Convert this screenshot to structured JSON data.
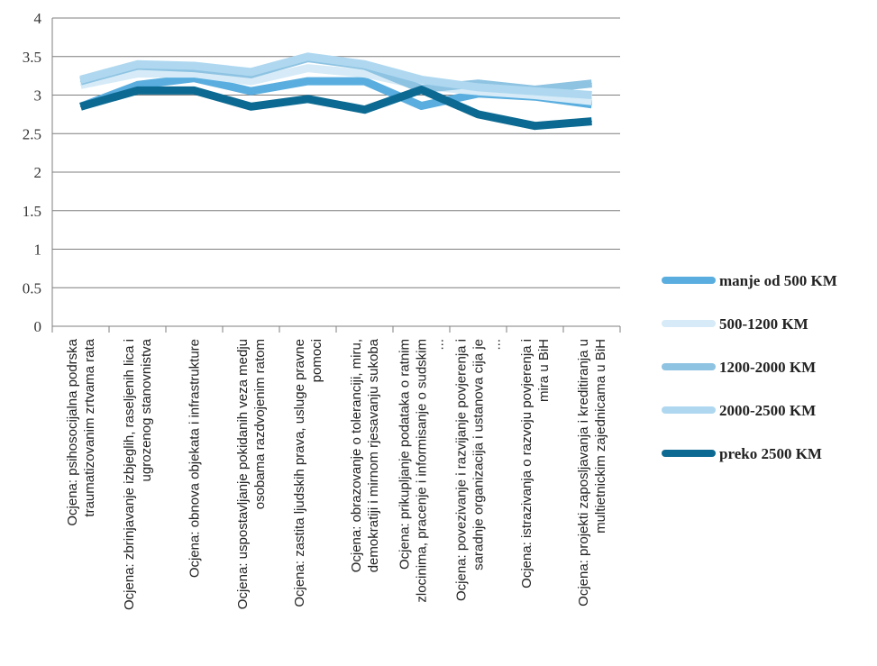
{
  "chart_data": {
    "type": "line",
    "ylim": [
      0,
      4
    ],
    "yticks": [
      "0",
      "0.5",
      "1",
      "1.5",
      "2",
      "2.5",
      "3",
      "3.5",
      "4"
    ],
    "grid": true,
    "legend_position": "right",
    "categories": [
      [
        "Ocjena: psihosocijalna podrska",
        "traumatizovanim zrtvama rata"
      ],
      [
        "Ocjena: zbrinjavanje izbjeglih, raseljenih lica i",
        "ugrozenog stanovnistva"
      ],
      [
        "Ocjena: obnova objekata i infrastrukture"
      ],
      [
        "Ocjena: uspostavljanje pokidanih veza medju",
        "osobama razdvojenim ratom"
      ],
      [
        "Ocjena: zastita ljudskih prava, usluge pravne",
        "pomoci"
      ],
      [
        "Ocjena: obrazovanje o toleranciji, miru,",
        "demokratiji i mirnom rjesavanju sukoba"
      ],
      [
        "Ocjena: prikupljanje podataka o ratnim",
        "zlocinima, pracenje i informisanje o sudskim",
        "..."
      ],
      [
        "Ocjena: povezivanje i razvijanje povjerenja i",
        "saradnje organizacija i ustanova cija je",
        "..."
      ],
      [
        "Ocjena: istrazivanja o razvoju povjerenja i",
        "mira u BiH"
      ],
      [
        "Ocjena: projekti zaposljavanja i kreditiranja u",
        "multietnickim zajednicama u BiH"
      ]
    ],
    "series": [
      {
        "name": "manje od 500 KM",
        "color": "#5aaedf",
        "values": [
          2.85,
          3.13,
          3.22,
          3.05,
          3.18,
          3.18,
          2.86,
          3.02,
          2.98,
          2.88
        ]
      },
      {
        "name": "500-1200 KM",
        "color": "#d6ebf7",
        "values": [
          3.13,
          3.28,
          3.28,
          3.18,
          3.35,
          3.28,
          3.12,
          3.05,
          3.0,
          2.92
        ]
      },
      {
        "name": "1200-2000 KM",
        "color": "#8ec3e2",
        "values": [
          3.18,
          3.38,
          3.35,
          3.27,
          3.48,
          3.38,
          3.08,
          3.15,
          3.07,
          3.15
        ]
      },
      {
        "name": "2000-2500 KM",
        "color": "#afd8f0",
        "values": [
          3.2,
          3.4,
          3.38,
          3.3,
          3.5,
          3.4,
          3.2,
          3.1,
          3.05,
          3.0
        ]
      },
      {
        "name": "preko 2500 KM",
        "color": "#0c6a92",
        "values": [
          2.85,
          3.06,
          3.06,
          2.85,
          2.95,
          2.81,
          3.07,
          2.75,
          2.6,
          2.66
        ]
      }
    ]
  }
}
